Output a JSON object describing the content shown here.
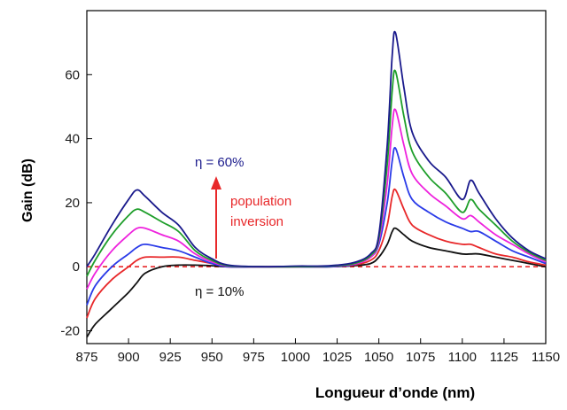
{
  "chart_data": {
    "type": "line",
    "xlabel": "Longueur d’onde (nm)",
    "ylabel": "Gain (dB)",
    "xlim": [
      875,
      1150
    ],
    "ylim": [
      -24,
      80
    ],
    "x_ticks": [
      "875",
      "900",
      "925",
      "950",
      "975",
      "1000",
      "1025",
      "1050",
      "1075",
      "1100",
      "1125",
      "1150"
    ],
    "y_ticks": [
      "-20",
      "0",
      "20",
      "40",
      "60"
    ],
    "grid": false,
    "x": [
      875,
      880,
      890,
      900,
      905,
      910,
      920,
      930,
      940,
      950,
      960,
      980,
      1000,
      1020,
      1035,
      1045,
      1050,
      1055,
      1058,
      1060,
      1065,
      1070,
      1080,
      1090,
      1100,
      1105,
      1110,
      1120,
      1130,
      1140,
      1150
    ],
    "series": [
      {
        "color": "#111111",
        "values": [
          -22,
          -18,
          -13,
          -8,
          -5,
          -2,
          0,
          0.5,
          0.5,
          0.3,
          0,
          0,
          0,
          0,
          0.3,
          1,
          3,
          7,
          11,
          12,
          10,
          8,
          6,
          5,
          4,
          4,
          4,
          3,
          2,
          1,
          0
        ]
      },
      {
        "color": "#e8282a",
        "values": [
          -16,
          -10,
          -4,
          0,
          2,
          3,
          3,
          3,
          2,
          1,
          0,
          0,
          0,
          0,
          0.5,
          2,
          5,
          13,
          22,
          24,
          18,
          13,
          10,
          8,
          7,
          7,
          6,
          4,
          3,
          1.5,
          0.5
        ]
      },
      {
        "color": "#2a3be8",
        "values": [
          -12,
          -6,
          0,
          4,
          6,
          7,
          6,
          5,
          3,
          1,
          0,
          0,
          0,
          0,
          0.7,
          3,
          7,
          20,
          33,
          37,
          28,
          21,
          17,
          14,
          12,
          11,
          11,
          8,
          5,
          3,
          1
        ]
      },
      {
        "color": "#ee22dd",
        "values": [
          -7,
          -2,
          5,
          10,
          12,
          12,
          10,
          8,
          4,
          1.5,
          0.2,
          0,
          0,
          0.2,
          0.8,
          3,
          8,
          26,
          44,
          49,
          38,
          29,
          23,
          19,
          15,
          16,
          14,
          10,
          7,
          4,
          1.5
        ]
      },
      {
        "color": "#1e9e2a",
        "values": [
          -3,
          2,
          10,
          16,
          18,
          17,
          14,
          11,
          5,
          2,
          0.3,
          0,
          0,
          0.2,
          1,
          3.5,
          9,
          32,
          55,
          61,
          47,
          36,
          28,
          23,
          17,
          21,
          18,
          13,
          8,
          4.5,
          2
        ]
      },
      {
        "color": "#1a1a8c",
        "values": [
          0,
          4,
          13,
          21,
          24,
          22,
          17,
          13,
          6,
          2.5,
          0.5,
          0,
          0.2,
          0.3,
          1.3,
          4,
          10,
          38,
          66,
          73,
          56,
          42,
          33,
          28,
          21,
          27,
          23,
          15,
          9,
          5,
          2.5
        ]
      }
    ],
    "reference_line": {
      "y": 0,
      "color": "#e8282a",
      "style": "dashed"
    },
    "annotations": {
      "top_label": {
        "text": "η = 60%",
        "color": "#1a1a8c"
      },
      "bottom_label": {
        "text": "η = 10%",
        "color": "#111111"
      },
      "arrow_label_1": {
        "text": "population",
        "color": "#e8282a"
      },
      "arrow_label_2": {
        "text": "inversion",
        "color": "#e8282a"
      }
    }
  }
}
